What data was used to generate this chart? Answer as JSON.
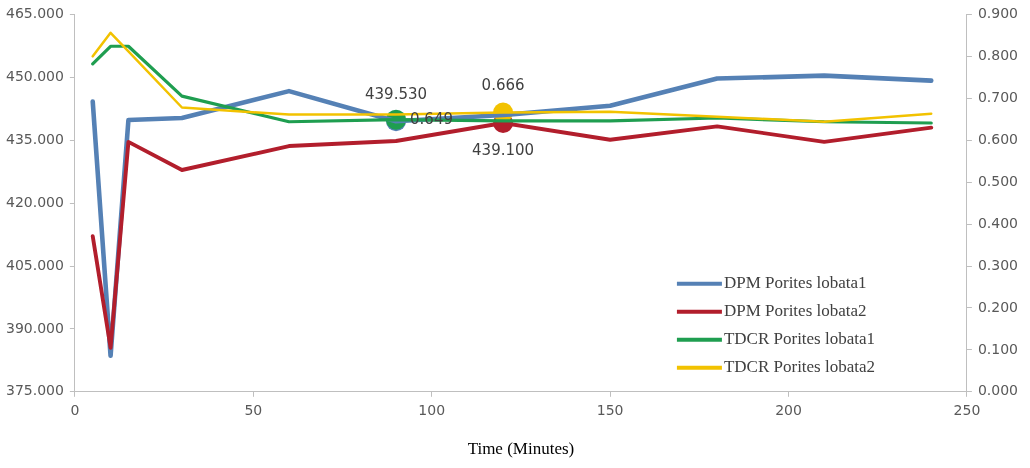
{
  "chart_data": {
    "type": "line",
    "xlabel": "Time (Minutes)",
    "x": [
      5,
      10,
      15,
      30,
      60,
      90,
      120,
      150,
      180,
      210,
      240
    ],
    "series": [
      {
        "name": "DPM Porites lobata1",
        "color": "#5581b5",
        "values": [
          444.2,
          383.6,
          439.8,
          440.3,
          446.7,
          439.53,
          441.0,
          443.2,
          449.7,
          450.4,
          449.2
        ],
        "value_labels": [
          null,
          null,
          null,
          null,
          null,
          "439.530",
          null,
          null,
          null,
          null,
          null
        ]
      },
      {
        "name": "DPM Porites lobata2",
        "color": "#b21e2c",
        "values": [
          412.1,
          385.5,
          434.6,
          427.9,
          433.6,
          434.8,
          439.1,
          435.1,
          438.3,
          434.6,
          438.0
        ],
        "value_labels": [
          null,
          null,
          null,
          null,
          null,
          null,
          "439.100",
          null,
          null,
          null,
          null
        ]
      },
      {
        "name": "TDCR Porites lobata1",
        "color": "#1f9e50",
        "axis": "y2",
        "values": [
          0.782,
          0.824,
          0.824,
          0.705,
          0.644,
          0.649,
          0.646,
          0.646,
          0.653,
          0.644,
          0.641
        ],
        "value_labels": [
          null,
          null,
          null,
          null,
          null,
          "0.649",
          null,
          null,
          null,
          null,
          null
        ]
      },
      {
        "name": "TDCR Porites lobata2",
        "color": "#f2c200",
        "axis": "y2",
        "values": [
          0.8,
          0.856,
          0.812,
          0.678,
          0.661,
          0.661,
          0.666,
          0.668,
          0.656,
          0.644,
          0.663
        ],
        "value_labels": [
          null,
          null,
          null,
          null,
          null,
          null,
          "0.666",
          null,
          null,
          null,
          null
        ]
      }
    ],
    "xlim": [
      0,
      250
    ],
    "xticks": [
      0,
      50,
      100,
      150,
      200,
      250
    ],
    "ylim": [
      375,
      465
    ],
    "yticks": [
      {
        "value": 375,
        "label": "375.000"
      },
      {
        "value": 390,
        "label": "390.000"
      },
      {
        "value": 405,
        "label": "405.000"
      },
      {
        "value": 420,
        "label": "420.000"
      },
      {
        "value": 435,
        "label": "435.000"
      },
      {
        "value": 450,
        "label": "450.000"
      },
      {
        "value": 465,
        "label": "465.000"
      }
    ],
    "y2lim": [
      0,
      0.9
    ],
    "y2ticks": [
      {
        "value": 0,
        "label": "0.000"
      },
      {
        "value": 0.1,
        "label": "0.100"
      },
      {
        "value": 0.2,
        "label": "0.200"
      },
      {
        "value": 0.3,
        "label": "0.300"
      },
      {
        "value": 0.4,
        "label": "0.400"
      },
      {
        "value": 0.5,
        "label": "0.500"
      },
      {
        "value": 0.6,
        "label": "0.600"
      },
      {
        "value": 0.7,
        "label": "0.700"
      },
      {
        "value": 0.8,
        "label": "0.800"
      },
      {
        "value": 0.9,
        "label": "0.900"
      }
    ],
    "grid": false,
    "legend": "bottom right",
    "marker": "none",
    "line_style": "solid"
  }
}
